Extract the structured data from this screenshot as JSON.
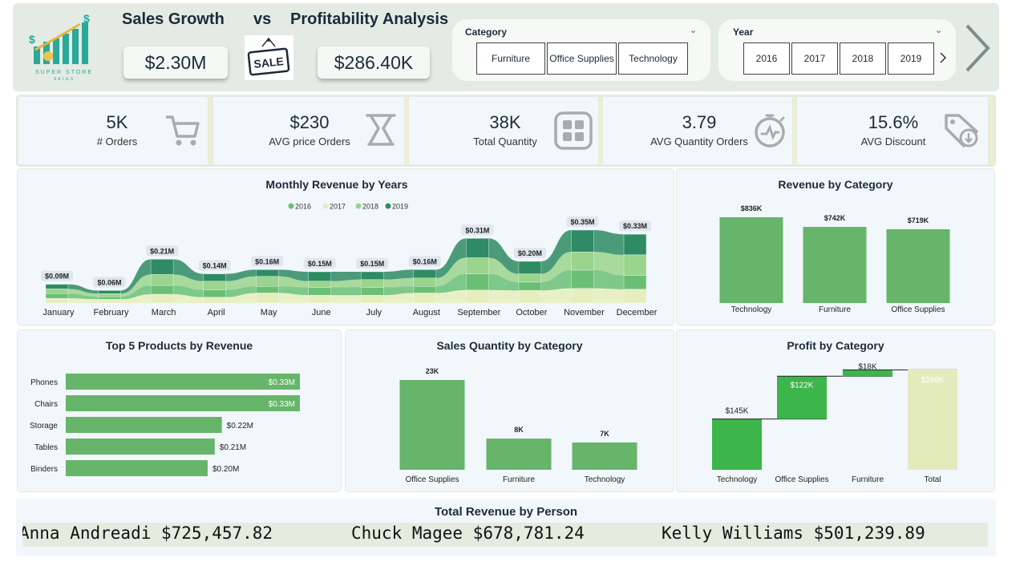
{
  "header": {
    "title_left": "Sales Growth",
    "title_vs": "vs",
    "title_right": "Profitability Analysis",
    "sales_value": "$2.30M",
    "profit_value": "$286.40K",
    "logo_text": "SUPER STORE",
    "logo_sub": "SALES",
    "sale_tag": "SALE"
  },
  "category_slicer": {
    "title": "Category",
    "options": [
      "Furniture",
      "Office Supplies",
      "Technology"
    ]
  },
  "year_slicer": {
    "title": "Year",
    "options": [
      "2016",
      "2017",
      "2018",
      "2019"
    ]
  },
  "kpis": [
    {
      "value": "5K",
      "label": "# Orders",
      "icon": "cart-icon"
    },
    {
      "value": "$230",
      "label": "AVG price Orders",
      "icon": "scale-icon"
    },
    {
      "value": "38K",
      "label": "Total Quantity",
      "icon": "grid-icon"
    },
    {
      "value": "3.79",
      "label": "AVG Quantity Orders",
      "icon": "stopwatch-icon"
    },
    {
      "value": "15.6%",
      "label": "AVG Discount",
      "icon": "discount-tag-icon"
    }
  ],
  "colors": {
    "bar_green": "#66b56a",
    "y2016": "#6abf75",
    "y2017": "#e6eebd",
    "y2018": "#9bd48c",
    "y2019": "#2e8b63",
    "profit_bar": "#3cb54a",
    "total_bar": "#e3ebbd"
  },
  "chart_data": [
    {
      "type": "area",
      "title": "Monthly Revenue by Years",
      "legend": [
        "2016",
        "2017",
        "2018",
        "2019"
      ],
      "categories": [
        "January",
        "February",
        "March",
        "April",
        "May",
        "June",
        "July",
        "August",
        "September",
        "October",
        "November",
        "December"
      ],
      "totals": [
        0.09,
        0.06,
        0.21,
        0.14,
        0.16,
        0.15,
        0.15,
        0.16,
        0.31,
        0.2,
        0.35,
        0.33
      ],
      "total_labels": [
        "$0.09M",
        "$0.06M",
        "$0.21M",
        "$0.14M",
        "$0.16M",
        "$0.15M",
        "$0.15M",
        "$0.16M",
        "$0.31M",
        "$0.20M",
        "$0.35M",
        "$0.33M"
      ],
      "unit": "$M"
    },
    {
      "type": "bar",
      "title": "Revenue by Category",
      "categories": [
        "Technology",
        "Furniture",
        "Office Supplies"
      ],
      "values": [
        836,
        742,
        719
      ],
      "labels": [
        "$836K",
        "$742K",
        "$719K"
      ],
      "unit": "$K"
    },
    {
      "type": "bar",
      "orientation": "horizontal",
      "title": "Top 5 Products by Revenue",
      "categories": [
        "Phones",
        "Chairs",
        "Storage",
        "Tables",
        "Binders"
      ],
      "values": [
        0.33,
        0.33,
        0.22,
        0.21,
        0.2
      ],
      "labels": [
        "$0.33M",
        "$0.33M",
        "$0.22M",
        "$0.21M",
        "$0.20M"
      ],
      "unit": "$M"
    },
    {
      "type": "bar",
      "title": "Sales Quantity by Category",
      "categories": [
        "Office Supplies",
        "Furniture",
        "Technology"
      ],
      "values": [
        23,
        8,
        7
      ],
      "labels": [
        "23K",
        "8K",
        "7K"
      ],
      "unit": "K"
    },
    {
      "type": "waterfall",
      "title": "Profit by Category",
      "categories": [
        "Technology",
        "Office Supplies",
        "Furniture",
        "Total"
      ],
      "values": [
        145,
        122,
        18,
        286
      ],
      "labels": [
        "$145K",
        "$122K",
        "$18K",
        "$286K"
      ],
      "unit": "$K"
    }
  ],
  "revenue_by_person": {
    "title": "Total Revenue by Person",
    "entries": [
      "Anna Andreadi $725,457.82",
      "Chuck Magee $678,781.24",
      "Kelly Williams $501,239.89"
    ]
  }
}
